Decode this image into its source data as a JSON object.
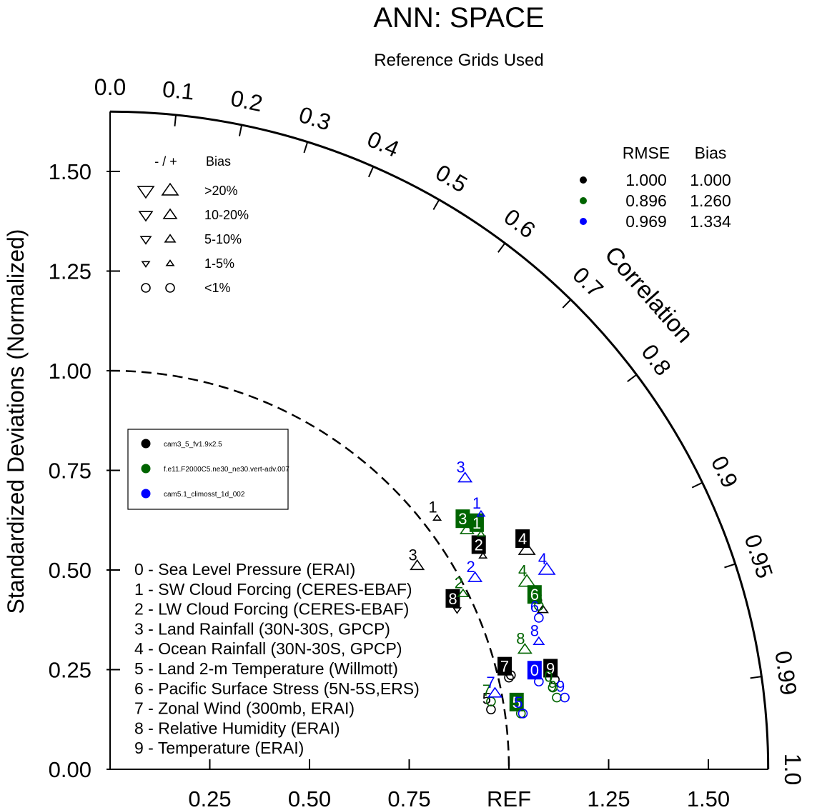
{
  "chart_data": {
    "type": "scatter",
    "subtype": "taylor-diagram",
    "title": "ANN: SPACE",
    "subtitle": "Reference Grids Used",
    "ylabel": "Standardized Deviations (Normalized)",
    "xlim": [
      0,
      1.65
    ],
    "ylim": [
      0,
      1.65
    ],
    "y_ticks": [
      "0.00",
      "0.25",
      "0.50",
      "0.75",
      "1.00",
      "1.25",
      "1.50"
    ],
    "x_ticks": [
      "0.25",
      "0.50",
      "0.75",
      "REF",
      "1.25",
      "1.50"
    ],
    "x_tick_values": [
      0.25,
      0.5,
      0.75,
      1.0,
      1.25,
      1.5
    ],
    "correlation_label": "Correlation",
    "correlation_ticks": [
      "0.0",
      "0.1",
      "0.2",
      "0.3",
      "0.4",
      "0.5",
      "0.6",
      "0.7",
      "0.8",
      "0.9",
      "0.95",
      "0.99",
      "1.0"
    ],
    "correlation_tick_values": [
      0.0,
      0.1,
      0.2,
      0.3,
      0.4,
      0.5,
      0.6,
      0.7,
      0.8,
      0.9,
      0.95,
      0.99,
      1.0
    ],
    "bias_legend": {
      "header_sign": "- / +",
      "header_bias": "Bias",
      "rows": [
        {
          "label": ">20%",
          "size": 3
        },
        {
          "label": "10-20%",
          "size": 2
        },
        {
          "label": "5-10%",
          "size": 1
        },
        {
          "label": "1-5%",
          "size": 0
        },
        {
          "label": "<1%",
          "size": -1
        }
      ]
    },
    "summary_table": {
      "header": [
        "RMSE",
        "Bias"
      ],
      "rows": [
        {
          "color": "#000000",
          "rmse": "1.000",
          "bias": "1.000"
        },
        {
          "color": "#006400",
          "rmse": "0.896",
          "bias": "1.260"
        },
        {
          "color": "#0000ff",
          "rmse": "0.969",
          "bias": "1.334"
        }
      ]
    },
    "case_legend": [
      {
        "name": "cam3_5_fv1.9x2.5",
        "color": "#000000"
      },
      {
        "name": "f.e11.F2000C5.ne30_ne30.vert-adv.007",
        "color": "#006400"
      },
      {
        "name": "cam5.1_climosst_1d_002",
        "color": "#0000ff"
      }
    ],
    "variables": [
      "0 - Sea Level Pressure (ERAI)",
      "1 - SW Cloud Forcing (CERES-EBAF)",
      "2 - LW Cloud Forcing (CERES-EBAF)",
      "3 - Land Rainfall (30N-30S, GPCP)",
      "4 - Ocean Rainfall (30N-30S, GPCP)",
      "5 - Land 2-m Temperature (Willmott)",
      "6 - Pacific Surface Stress (5N-5S,ERS)",
      "7 - Zonal Wind (300mb, ERAI)",
      "8 - Relative Humidity (ERAI)",
      "9 - Temperature (ERAI)"
    ],
    "series": [
      {
        "name": "cam3_5_fv1.9x2.5",
        "color": "#000000",
        "points": [
          {
            "id": "0",
            "x": 1.005,
            "y": 0.236,
            "marker": "circle",
            "boxed": false
          },
          {
            "id": "1",
            "x": 0.82,
            "y": 0.63,
            "marker": "tri-up",
            "size": 0,
            "boxed": false
          },
          {
            "id": "2",
            "x": 0.935,
            "y": 0.535,
            "marker": "tri-up",
            "size": 0,
            "boxed": true
          },
          {
            "id": "3",
            "x": 0.77,
            "y": 0.51,
            "marker": "tri-up",
            "size": 2,
            "boxed": false
          },
          {
            "id": "4",
            "x": 1.045,
            "y": 0.55,
            "marker": "tri-up",
            "size": 3,
            "boxed": true
          },
          {
            "id": "5",
            "x": 0.955,
            "y": 0.15,
            "marker": "circle",
            "boxed": false
          },
          {
            "id": "6",
            "x": 1.085,
            "y": 0.4,
            "marker": "tri-up",
            "size": 1,
            "boxed": false
          },
          {
            "id": "7",
            "x": 1.0,
            "y": 0.23,
            "marker": "circle",
            "boxed": true
          },
          {
            "id": "8",
            "x": 0.87,
            "y": 0.4,
            "marker": "tri-down",
            "size": 0,
            "boxed": true
          },
          {
            "id": "9",
            "x": 1.115,
            "y": 0.225,
            "marker": "circle",
            "boxed": true
          }
        ]
      },
      {
        "name": "f.e11.F2000C5.ne30_ne30.vert-adv.007",
        "color": "#006400",
        "points": [
          {
            "id": "0",
            "x": 1.11,
            "y": 0.205,
            "marker": "circle",
            "boxed": false
          },
          {
            "id": "1",
            "x": 0.93,
            "y": 0.59,
            "marker": "tri-up",
            "size": 0,
            "boxed": true
          },
          {
            "id": "2",
            "x": 0.885,
            "y": 0.44,
            "marker": "tri-up",
            "size": 1,
            "boxed": false
          },
          {
            "id": "3",
            "x": 0.895,
            "y": 0.6,
            "marker": "tri-up",
            "size": 2,
            "boxed": true
          },
          {
            "id": "4",
            "x": 1.045,
            "y": 0.47,
            "marker": "tri-up",
            "size": 3,
            "boxed": false
          },
          {
            "id": "5",
            "x": 1.03,
            "y": 0.14,
            "marker": "circle",
            "boxed": true
          },
          {
            "id": "6",
            "x": 1.075,
            "y": 0.41,
            "marker": "circle",
            "boxed": true
          },
          {
            "id": "7",
            "x": 0.955,
            "y": 0.17,
            "marker": "circle",
            "boxed": false
          },
          {
            "id": "8",
            "x": 1.04,
            "y": 0.3,
            "marker": "tri-up",
            "size": 2,
            "boxed": false
          },
          {
            "id": "9",
            "x": 1.12,
            "y": 0.18,
            "marker": "circle",
            "boxed": false
          }
        ]
      },
      {
        "name": "cam5.1_climosst_1d_002",
        "color": "#0000ff",
        "points": [
          {
            "id": "0",
            "x": 1.075,
            "y": 0.22,
            "marker": "circle",
            "boxed": true
          },
          {
            "id": "1",
            "x": 0.93,
            "y": 0.64,
            "marker": "tri-up",
            "size": 0,
            "boxed": false
          },
          {
            "id": "2",
            "x": 0.915,
            "y": 0.48,
            "marker": "tri-up",
            "size": 2,
            "boxed": false
          },
          {
            "id": "3",
            "x": 0.89,
            "y": 0.73,
            "marker": "tri-up",
            "size": 2,
            "boxed": false
          },
          {
            "id": "4",
            "x": 1.095,
            "y": 0.5,
            "marker": "tri-up",
            "size": 3,
            "boxed": false
          },
          {
            "id": "5",
            "x": 1.035,
            "y": 0.14,
            "marker": "circle",
            "boxed": false
          },
          {
            "id": "6",
            "x": 1.075,
            "y": 0.38,
            "marker": "circle",
            "boxed": false
          },
          {
            "id": "7",
            "x": 0.965,
            "y": 0.19,
            "marker": "tri-up",
            "size": 2,
            "boxed": false
          },
          {
            "id": "8",
            "x": 1.075,
            "y": 0.32,
            "marker": "tri-up",
            "size": 1,
            "boxed": false
          },
          {
            "id": "9",
            "x": 1.14,
            "y": 0.18,
            "marker": "circle",
            "boxed": false
          }
        ]
      }
    ]
  }
}
